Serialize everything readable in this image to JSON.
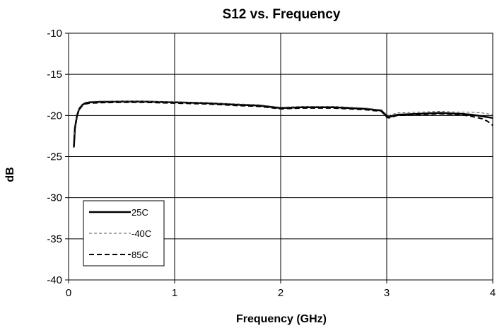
{
  "chart_data": {
    "type": "line",
    "title": "S12 vs. Frequency",
    "xlabel": "Frequency (GHz)",
    "ylabel": "dB",
    "xlim": [
      0,
      4
    ],
    "ylim": [
      -40,
      -10
    ],
    "xticks": [
      0,
      1,
      2,
      3,
      4
    ],
    "yticks": [
      -10,
      -15,
      -20,
      -25,
      -30,
      -35,
      -40
    ],
    "grid": true,
    "legend_position": "bottom-left",
    "series": [
      {
        "name": "25C",
        "style": "solid",
        "color": "#000000",
        "x": [
          0.05,
          0.06,
          0.08,
          0.1,
          0.13,
          0.16,
          0.2,
          0.3,
          0.5,
          0.7,
          1.0,
          1.3,
          1.6,
          1.8,
          2.0,
          2.2,
          2.5,
          2.8,
          2.95,
          3.0,
          3.02,
          3.1,
          3.3,
          3.5,
          3.7,
          3.8,
          3.9,
          4.0
        ],
        "y": [
          -23.8,
          -21.5,
          -20.0,
          -19.2,
          -18.7,
          -18.5,
          -18.4,
          -18.35,
          -18.3,
          -18.3,
          -18.4,
          -18.5,
          -18.7,
          -18.8,
          -19.1,
          -19.0,
          -19.0,
          -19.2,
          -19.4,
          -20.1,
          -20.2,
          -19.9,
          -19.8,
          -19.7,
          -19.8,
          -19.9,
          -20.1,
          -20.3
        ]
      },
      {
        "name": "-40C",
        "style": "dashed-fine",
        "color": "#555555",
        "x": [
          0.05,
          0.06,
          0.08,
          0.1,
          0.13,
          0.16,
          0.2,
          0.3,
          0.5,
          0.7,
          1.0,
          1.3,
          1.6,
          1.8,
          2.0,
          2.2,
          2.5,
          2.8,
          2.95,
          3.0,
          3.02,
          3.1,
          3.3,
          3.5,
          3.7,
          3.8,
          3.9,
          4.0
        ],
        "y": [
          -23.6,
          -21.3,
          -19.9,
          -19.1,
          -18.6,
          -18.4,
          -18.3,
          -18.25,
          -18.25,
          -18.25,
          -18.35,
          -18.45,
          -18.6,
          -18.7,
          -19.0,
          -18.9,
          -18.9,
          -19.1,
          -19.3,
          -19.9,
          -20.0,
          -19.7,
          -19.6,
          -19.5,
          -19.6,
          -19.6,
          -19.7,
          -19.9
        ]
      },
      {
        "name": "85C",
        "style": "dashed",
        "color": "#000000",
        "x": [
          0.05,
          0.06,
          0.08,
          0.1,
          0.13,
          0.16,
          0.2,
          0.3,
          0.5,
          0.7,
          1.0,
          1.3,
          1.6,
          1.8,
          2.0,
          2.2,
          2.5,
          2.8,
          2.95,
          3.0,
          3.02,
          3.1,
          3.3,
          3.5,
          3.7,
          3.8,
          3.9,
          3.95,
          4.0
        ],
        "y": [
          -23.9,
          -21.6,
          -20.1,
          -19.3,
          -18.8,
          -18.6,
          -18.5,
          -18.45,
          -18.4,
          -18.4,
          -18.5,
          -18.6,
          -18.8,
          -18.9,
          -19.2,
          -19.1,
          -19.1,
          -19.3,
          -19.5,
          -20.2,
          -20.3,
          -20.0,
          -19.9,
          -19.8,
          -19.9,
          -20.1,
          -20.4,
          -20.7,
          -21.2
        ]
      }
    ]
  }
}
